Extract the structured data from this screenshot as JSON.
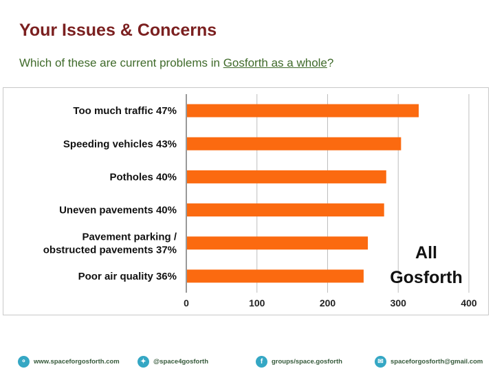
{
  "header": {
    "title": "Your Issues & Concerns",
    "subtitle_before": "Which of these are current problems in ",
    "subtitle_link": "Gosforth as a whole",
    "subtitle_after": "?"
  },
  "chart_data": {
    "type": "bar",
    "orientation": "horizontal",
    "categories": [
      [
        "Too much traffic 47%"
      ],
      [
        "Speeding vehicles 43%"
      ],
      [
        "Potholes 40%"
      ],
      [
        "Uneven pavements 40%"
      ],
      [
        "Pavement parking /",
        "obstructed pavements 37%"
      ],
      [
        "Poor air quality 36%"
      ]
    ],
    "values": [
      329,
      304,
      283,
      280,
      257,
      251
    ],
    "xlim": [
      0,
      400
    ],
    "xticks": [
      "0",
      "100",
      "200",
      "300",
      "400"
    ],
    "annotation": [
      "All",
      "Gosforth"
    ],
    "grid": true,
    "bar_color": "#fb6a10"
  },
  "footer": {
    "website": "www.spaceforgosforth.com",
    "twitter": "@space4gosforth",
    "facebook": "groups/space.gosforth",
    "email": "spaceforgosforth@gmail.com"
  },
  "colors": {
    "title": "#7b2020",
    "subtitle": "#3f6a2a",
    "footer_icon": "#35a7c4",
    "footer_text": "#35593a"
  }
}
